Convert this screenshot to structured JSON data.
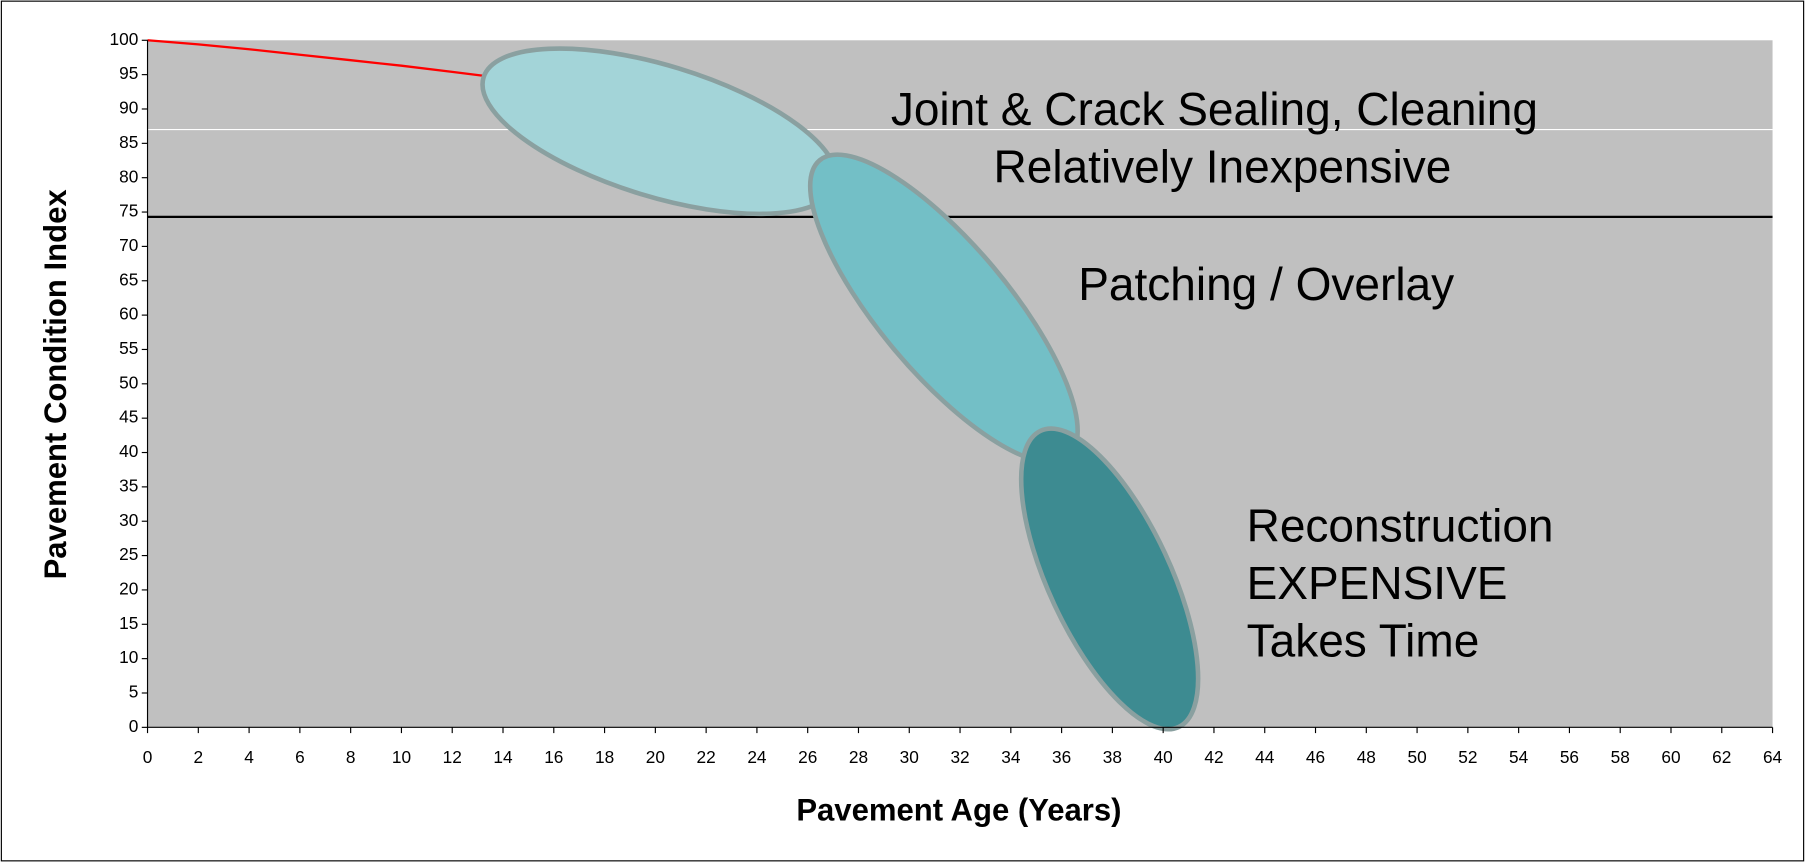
{
  "chart_data": {
    "type": "line",
    "xlabel": "Pavement Age (Years)",
    "ylabel": "Pavement Condition Index",
    "xlim": [
      0,
      64
    ],
    "xticks": [
      0,
      2,
      4,
      6,
      8,
      10,
      12,
      14,
      16,
      18,
      20,
      22,
      24,
      26,
      28,
      30,
      32,
      34,
      36,
      38,
      40,
      42,
      44,
      46,
      48,
      50,
      52,
      54,
      56,
      58,
      60,
      62,
      64
    ],
    "ylim": [
      0,
      100
    ],
    "yticks": [
      0,
      5,
      10,
      15,
      20,
      25,
      30,
      35,
      40,
      45,
      50,
      55,
      60,
      65,
      70,
      75,
      80,
      85,
      90,
      95,
      100
    ],
    "grid": false,
    "series": [
      {
        "color": "#ff0000",
        "x": [
          0,
          2,
          4,
          6,
          8,
          10,
          12,
          13.3
        ],
        "values": [
          100,
          99.4,
          98.7,
          97.9,
          97.1,
          96.3,
          95.4,
          94.8
        ]
      }
    ],
    "hlines": [
      {
        "value": 87,
        "color": "#ffffff"
      },
      {
        "value": 74.3,
        "color": "#000000"
      }
    ],
    "annotations": [
      "Joint & Crack Sealing, Cleaning",
      "Relatively Inexpensive",
      "Patching / Overlay",
      "Reconstruction",
      "EXPENSIVE",
      "Takes Time"
    ]
  }
}
